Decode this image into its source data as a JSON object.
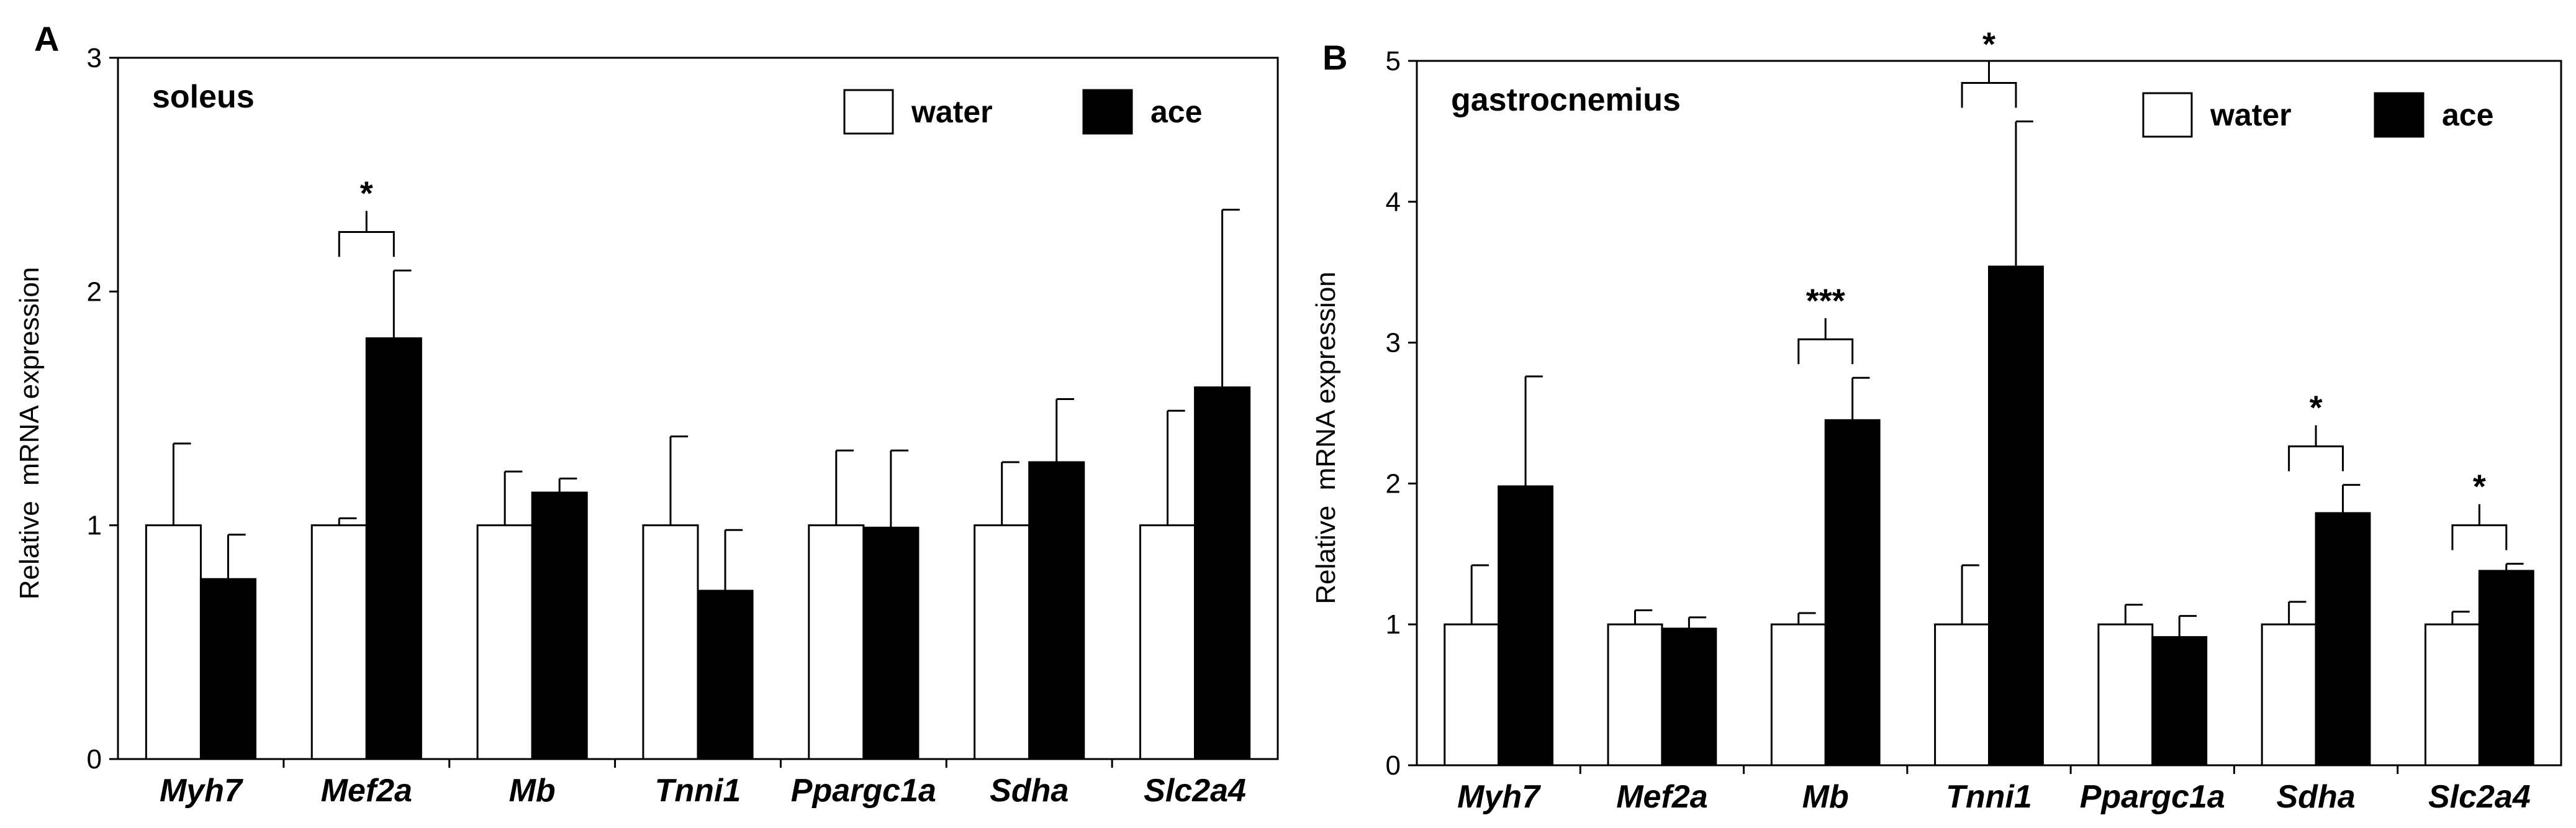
{
  "colors": {
    "water": "#ffffff",
    "ace": "#000000",
    "axis": "#000000"
  },
  "chart_data": [
    {
      "panel": "A",
      "type": "bar",
      "tissue": "soleus",
      "title": "",
      "xlabel": "",
      "ylabel": "Relative  mRNA expression",
      "ylim": [
        0,
        3
      ],
      "yticks": [
        0,
        1,
        2,
        3
      ],
      "grid": false,
      "legend_position": "top-right",
      "categories": [
        "Myh7",
        "Mef2a",
        "Mb",
        "Tnni1",
        "Ppargc1a",
        "Sdha",
        "Slc2a4"
      ],
      "series": [
        {
          "name": "water",
          "color": "#ffffff",
          "values": [
            1.0,
            1.0,
            1.0,
            1.0,
            1.0,
            1.0,
            1.0
          ],
          "errors": [
            0.35,
            0.03,
            0.23,
            0.38,
            0.32,
            0.27,
            0.49
          ]
        },
        {
          "name": "ace",
          "color": "#000000",
          "values": [
            0.77,
            1.8,
            1.14,
            0.72,
            0.99,
            1.27,
            1.59
          ],
          "errors": [
            0.19,
            0.29,
            0.06,
            0.26,
            0.33,
            0.27,
            0.76
          ]
        }
      ],
      "annotations": [
        {
          "category": "Mef2a",
          "label": "*"
        }
      ]
    },
    {
      "panel": "B",
      "type": "bar",
      "tissue": "gastrocnemius",
      "title": "",
      "xlabel": "",
      "ylabel": "Relative  mRNA expression",
      "ylim": [
        0,
        5
      ],
      "yticks": [
        0,
        1,
        2,
        3,
        4,
        5
      ],
      "grid": false,
      "legend_position": "top-right",
      "categories": [
        "Myh7",
        "Mef2a",
        "Mb",
        "Tnni1",
        "Ppargc1a",
        "Sdha",
        "Slc2a4"
      ],
      "series": [
        {
          "name": "water",
          "color": "#ffffff",
          "values": [
            1.0,
            1.0,
            1.0,
            1.0,
            1.0,
            1.0,
            1.0
          ],
          "errors": [
            0.42,
            0.1,
            0.08,
            0.42,
            0.14,
            0.16,
            0.09
          ]
        },
        {
          "name": "ace",
          "color": "#000000",
          "values": [
            1.98,
            0.97,
            2.45,
            3.54,
            0.91,
            1.79,
            1.38
          ],
          "errors": [
            0.78,
            0.08,
            0.3,
            1.03,
            0.15,
            0.2,
            0.05
          ]
        }
      ],
      "annotations": [
        {
          "category": "Mb",
          "label": "***"
        },
        {
          "category": "Tnni1",
          "label": "*"
        },
        {
          "category": "Sdha",
          "label": "*"
        },
        {
          "category": "Slc2a4",
          "label": "*"
        }
      ]
    }
  ]
}
